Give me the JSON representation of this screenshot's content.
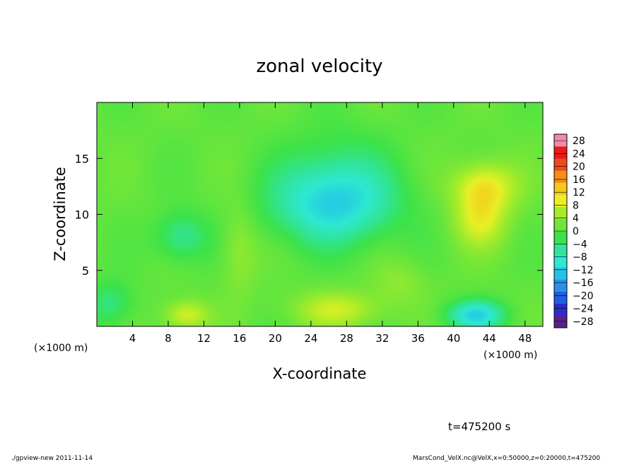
{
  "chart_data": {
    "type": "heatmap",
    "title": "zonal velocity",
    "xlabel": "X-coordinate",
    "ylabel": "Z-coordinate",
    "xunit_left": "(×1000 m)",
    "xunit_right": "(×1000 m)",
    "xlim": [
      0,
      50
    ],
    "ylim": [
      0,
      20
    ],
    "xticks": [
      4,
      8,
      12,
      16,
      20,
      24,
      28,
      32,
      36,
      40,
      44,
      48
    ],
    "yticks": [
      5,
      10,
      15
    ],
    "grid": false,
    "colorbar": {
      "placement": "right",
      "labels": [
        28,
        24,
        20,
        16,
        12,
        8,
        4,
        0,
        -4,
        -8,
        -12,
        -16,
        -20,
        -24,
        -28
      ],
      "label_texts": [
        "28",
        "24",
        "20",
        "16",
        "12",
        "8",
        "4",
        "0",
        "−4",
        "−8",
        "−12",
        "−16",
        "−20",
        "−24",
        "−28"
      ],
      "min": -30,
      "max": 30
    },
    "field_features": [
      {
        "x": 26.5,
        "z": 10.8,
        "sx": 7,
        "sz": 3.5,
        "value": -12
      },
      {
        "x": 27,
        "z": 14,
        "sx": 6,
        "sz": 4,
        "value": -4
      },
      {
        "x": 9.5,
        "z": 8,
        "sx": 3,
        "sz": 2.2,
        "value": -7
      },
      {
        "x": 43.5,
        "z": 12.5,
        "sx": 3.5,
        "sz": 2.2,
        "value": 10
      },
      {
        "x": 43,
        "z": 9.5,
        "sx": 3,
        "sz": 2.5,
        "value": 8
      },
      {
        "x": 42.5,
        "z": 1.0,
        "sx": 3.2,
        "sz": 1.3,
        "value": -13
      },
      {
        "x": 10,
        "z": 1.0,
        "sx": 2.5,
        "sz": 1.3,
        "value": 8
      },
      {
        "x": 27,
        "z": 1.5,
        "sx": 5,
        "sz": 1.6,
        "value": 7
      },
      {
        "x": 16,
        "z": 7,
        "sx": 2,
        "sz": 4,
        "value": 4
      },
      {
        "x": 1.5,
        "z": 2,
        "sx": 2.5,
        "sz": 2,
        "value": -6
      },
      {
        "x": 34,
        "z": 4,
        "sx": 3,
        "sz": 2,
        "value": 3
      }
    ],
    "field_background": 1
  },
  "annotations": {
    "time": "t=475200 s",
    "footer_left": "./gpview-new  2011-11-14",
    "footer_right": "MarsCond_VelX.nc@VelX,x=0:50000,z=0:20000,t=475200"
  }
}
